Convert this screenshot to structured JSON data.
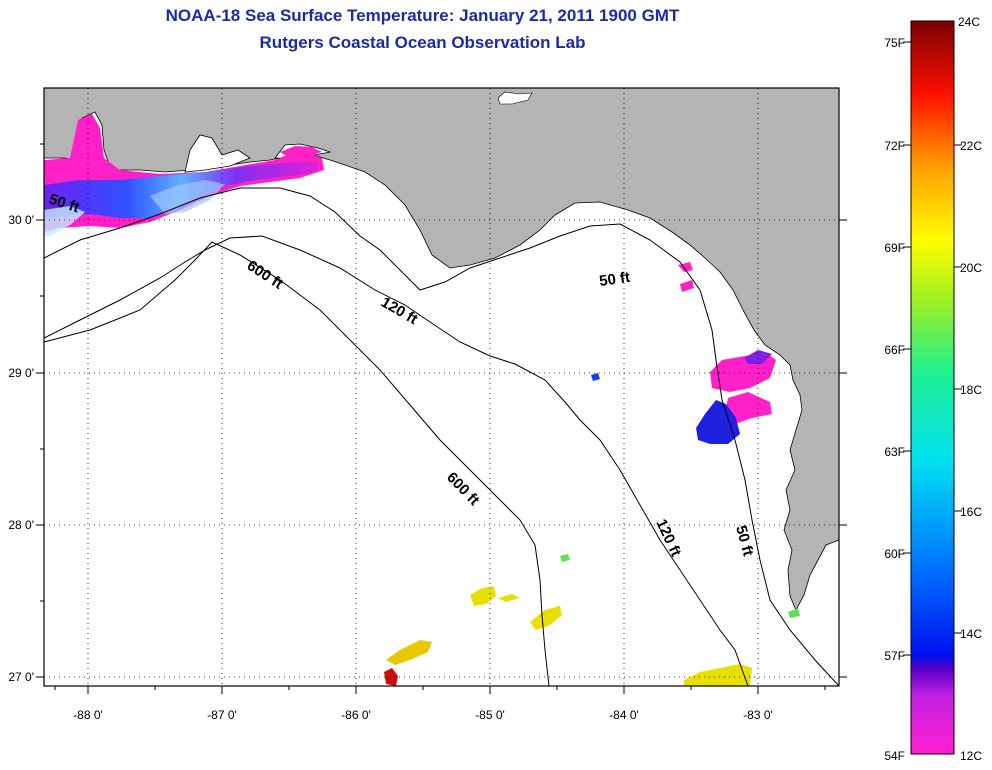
{
  "title": "NOAA-18 Sea Surface Temperature:  January 21, 2011 1900 GMT",
  "subtitle": "Rutgers Coastal Ocean Observation Lab",
  "axes": {
    "lon_labels": [
      "-88 0'",
      "-87 0'",
      "-86 0'",
      "-85 0'",
      "-84 0'",
      "-83 0'"
    ],
    "lat_labels": [
      "30 0'",
      "29 0'",
      "28 0'",
      "27 0'"
    ]
  },
  "contours": {
    "labels": [
      "50 ft",
      "50 ft",
      "50 ft",
      "120 ft",
      "120 ft",
      "600 ft",
      "600 ft"
    ]
  },
  "colorbar": {
    "fahrenheit": [
      "75F",
      "72F",
      "69F",
      "66F",
      "63F",
      "60F",
      "57F",
      "54F"
    ],
    "celsius": [
      "24C",
      "22C",
      "20C",
      "18C",
      "16C",
      "14C",
      "12C"
    ]
  },
  "colors": {
    "title": "#1a2aa8",
    "land": "#b4b4b4",
    "ocean": "#ffffff",
    "sst_cold": "#ff1fc8",
    "sst_warm": "#e8e000"
  }
}
